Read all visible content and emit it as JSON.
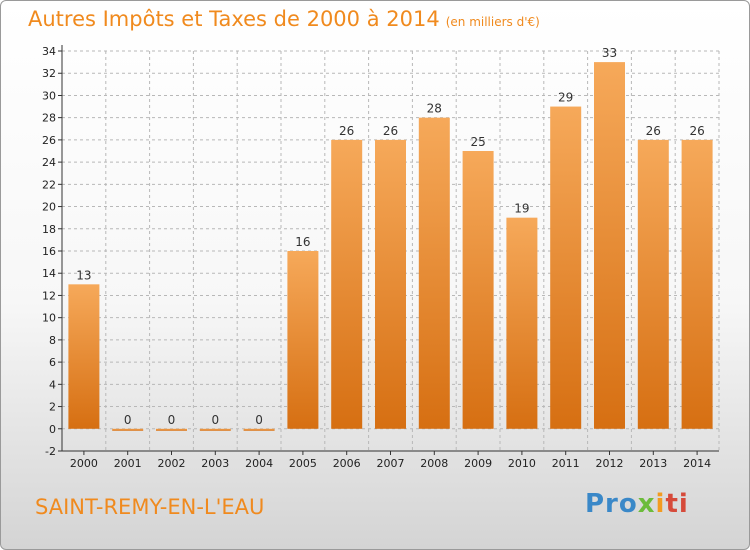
{
  "header": {
    "title": "Autres Impôts et Taxes de 2000 à 2014",
    "subtitle": "(en milliers d'€)"
  },
  "footer": {
    "place": "SAINT-REMY-EN-L'EAU",
    "logo": [
      "Pro",
      "x",
      "i",
      "ti"
    ]
  },
  "colors": {
    "accent": "#f08a1e",
    "bar_top": "#f6a95a",
    "bar_bottom": "#d66f12",
    "axis": "#333333",
    "grid": "#b8b8b8"
  },
  "chart_data": {
    "type": "bar",
    "title": "Autres Impôts et Taxes de 2000 à 2014",
    "subtitle": "(en milliers d'€)",
    "categories": [
      "2000",
      "2001",
      "2002",
      "2003",
      "2004",
      "2005",
      "2006",
      "2007",
      "2008",
      "2009",
      "2010",
      "2011",
      "2012",
      "2013",
      "2014"
    ],
    "values": [
      13,
      0,
      0,
      0,
      0,
      16,
      26,
      26,
      28,
      25,
      19,
      29,
      33,
      26,
      26
    ],
    "ylim": [
      -2,
      34
    ],
    "yticks": [
      -2,
      0,
      2,
      4,
      6,
      8,
      10,
      12,
      14,
      16,
      18,
      20,
      22,
      24,
      26,
      28,
      30,
      32,
      34
    ],
    "grid": "horizontal dashed",
    "data_labels": true,
    "legend": "none"
  }
}
